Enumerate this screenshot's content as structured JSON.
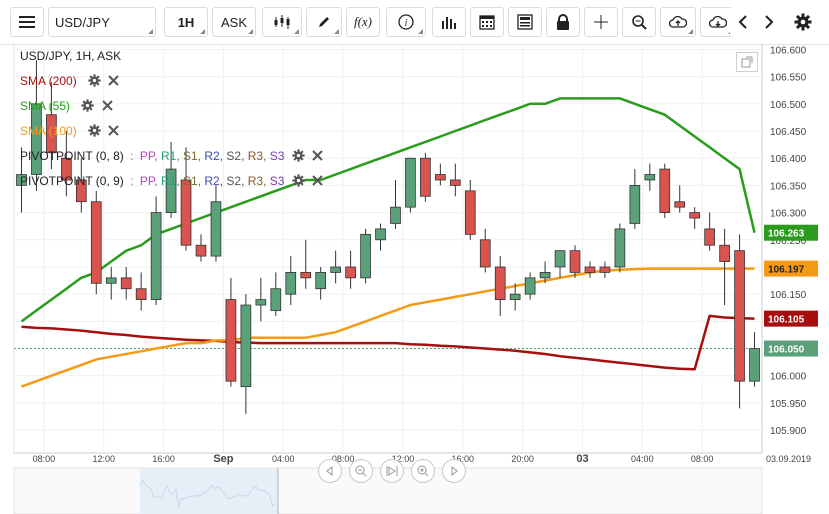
{
  "toolbar": {
    "symbol": "USD/JPY",
    "interval": "1H",
    "price_side": "ASK",
    "fx_label": "f(x)"
  },
  "legend": {
    "title": "USD/JPY, 1H, ASK",
    "sma200": "SMA (200)",
    "sma55": "SMA (55)",
    "sma100": "SMA (100)",
    "pivot1_name": "PIVOTPOINT (0, 8)",
    "pivot2_name": "PIVOTPOINT (0, 9)",
    "pivot_levels": [
      "PP,",
      "R1,",
      "S1,",
      "R2,",
      "S2,",
      "R3,",
      "S3"
    ],
    "pivot_sep": ":"
  },
  "colors": {
    "up": "#5aa17a",
    "down": "#d9534f",
    "sma200": "#a50f0f",
    "sma55": "#2a9b1c",
    "sma100": "#f59a16",
    "pp": "#c03fc0",
    "r1": "#1f9e77",
    "s1": "#7a6a30",
    "r2": "#3a4fb0",
    "s2": "#555555",
    "r3": "#8a5a2b",
    "s3": "#7b3bb0"
  },
  "axis": {
    "y_ticks": [
      "106.600",
      "106.550",
      "106.500",
      "106.450",
      "106.400",
      "106.350",
      "106.300",
      "106.250",
      "106.200",
      "106.150",
      "106.100",
      "106.050",
      "106.000",
      "105.950",
      "105.900"
    ],
    "x_ticks": [
      {
        "label": "08:00",
        "i": 1.5
      },
      {
        "label": "12:00",
        "i": 5.5
      },
      {
        "label": "16:00",
        "i": 9.5
      },
      {
        "label": "Sep",
        "i": 13.5
      },
      {
        "label": "04:00",
        "i": 17.5
      },
      {
        "label": "08:00",
        "i": 21.5
      },
      {
        "label": "12:00",
        "i": 25.5
      },
      {
        "label": "16:00",
        "i": 29.5
      },
      {
        "label": "20:00",
        "i": 33.5
      },
      {
        "label": "03",
        "i": 37.5
      },
      {
        "label": "04:00",
        "i": 41.5
      },
      {
        "label": "08:00",
        "i": 45.5
      }
    ],
    "date_label": "03.09.2019"
  },
  "price_tags": {
    "sma55": "106.263",
    "sma100": "106.197",
    "sma200": "106.105",
    "last": "106.050"
  },
  "chart_data": {
    "type": "candlestick",
    "symbol": "USD/JPY",
    "interval": "1H",
    "ylim": [
      105.88,
      106.61
    ],
    "candles": [
      {
        "o": 106.35,
        "h": 106.42,
        "l": 106.3,
        "c": 106.37
      },
      {
        "o": 106.37,
        "h": 106.58,
        "l": 106.34,
        "c": 106.5
      },
      {
        "o": 106.48,
        "h": 106.54,
        "l": 106.38,
        "c": 106.41
      },
      {
        "o": 106.4,
        "h": 106.45,
        "l": 106.33,
        "c": 106.36
      },
      {
        "o": 106.36,
        "h": 106.4,
        "l": 106.3,
        "c": 106.32
      },
      {
        "o": 106.32,
        "h": 106.34,
        "l": 106.15,
        "c": 106.17
      },
      {
        "o": 106.17,
        "h": 106.2,
        "l": 106.14,
        "c": 106.18
      },
      {
        "o": 106.18,
        "h": 106.2,
        "l": 106.14,
        "c": 106.16
      },
      {
        "o": 106.16,
        "h": 106.19,
        "l": 106.12,
        "c": 106.14
      },
      {
        "o": 106.14,
        "h": 106.33,
        "l": 106.13,
        "c": 106.3
      },
      {
        "o": 106.3,
        "h": 106.43,
        "l": 106.29,
        "c": 106.38
      },
      {
        "o": 106.36,
        "h": 106.42,
        "l": 106.23,
        "c": 106.24
      },
      {
        "o": 106.24,
        "h": 106.26,
        "l": 106.21,
        "c": 106.22
      },
      {
        "o": 106.22,
        "h": 106.35,
        "l": 106.21,
        "c": 106.32
      },
      {
        "o": 106.14,
        "h": 106.18,
        "l": 105.98,
        "c": 105.99
      },
      {
        "o": 105.98,
        "h": 106.15,
        "l": 105.93,
        "c": 106.13
      },
      {
        "o": 106.13,
        "h": 106.18,
        "l": 106.1,
        "c": 106.14
      },
      {
        "o": 106.12,
        "h": 106.19,
        "l": 106.11,
        "c": 106.16
      },
      {
        "o": 106.15,
        "h": 106.22,
        "l": 106.13,
        "c": 106.19
      },
      {
        "o": 106.19,
        "h": 106.25,
        "l": 106.16,
        "c": 106.18
      },
      {
        "o": 106.16,
        "h": 106.2,
        "l": 106.14,
        "c": 106.19
      },
      {
        "o": 106.19,
        "h": 106.23,
        "l": 106.17,
        "c": 106.2
      },
      {
        "o": 106.2,
        "h": 106.23,
        "l": 106.16,
        "c": 106.18
      },
      {
        "o": 106.18,
        "h": 106.27,
        "l": 106.17,
        "c": 106.26
      },
      {
        "o": 106.25,
        "h": 106.28,
        "l": 106.23,
        "c": 106.27
      },
      {
        "o": 106.28,
        "h": 106.36,
        "l": 106.27,
        "c": 106.31
      },
      {
        "o": 106.31,
        "h": 106.4,
        "l": 106.3,
        "c": 106.4
      },
      {
        "o": 106.4,
        "h": 106.41,
        "l": 106.32,
        "c": 106.33
      },
      {
        "o": 106.37,
        "h": 106.39,
        "l": 106.35,
        "c": 106.36
      },
      {
        "o": 106.36,
        "h": 106.39,
        "l": 106.33,
        "c": 106.35
      },
      {
        "o": 106.34,
        "h": 106.36,
        "l": 106.25,
        "c": 106.26
      },
      {
        "o": 106.25,
        "h": 106.27,
        "l": 106.19,
        "c": 106.2
      },
      {
        "o": 106.2,
        "h": 106.22,
        "l": 106.11,
        "c": 106.14
      },
      {
        "o": 106.14,
        "h": 106.17,
        "l": 106.12,
        "c": 106.15
      },
      {
        "o": 106.15,
        "h": 106.19,
        "l": 106.14,
        "c": 106.18
      },
      {
        "o": 106.18,
        "h": 106.21,
        "l": 106.17,
        "c": 106.19
      },
      {
        "o": 106.2,
        "h": 106.23,
        "l": 106.18,
        "c": 106.23
      },
      {
        "o": 106.23,
        "h": 106.24,
        "l": 106.18,
        "c": 106.19
      },
      {
        "o": 106.2,
        "h": 106.21,
        "l": 106.18,
        "c": 106.19
      },
      {
        "o": 106.2,
        "h": 106.21,
        "l": 106.18,
        "c": 106.19
      },
      {
        "o": 106.2,
        "h": 106.28,
        "l": 106.19,
        "c": 106.27
      },
      {
        "o": 106.28,
        "h": 106.38,
        "l": 106.27,
        "c": 106.35
      },
      {
        "o": 106.36,
        "h": 106.39,
        "l": 106.34,
        "c": 106.37
      },
      {
        "o": 106.38,
        "h": 106.39,
        "l": 106.29,
        "c": 106.3
      },
      {
        "o": 106.32,
        "h": 106.35,
        "l": 106.3,
        "c": 106.31
      },
      {
        "o": 106.3,
        "h": 106.31,
        "l": 106.27,
        "c": 106.29
      },
      {
        "o": 106.27,
        "h": 106.3,
        "l": 106.23,
        "c": 106.24
      },
      {
        "o": 106.24,
        "h": 106.27,
        "l": 106.13,
        "c": 106.21
      },
      {
        "o": 106.23,
        "h": 106.26,
        "l": 105.94,
        "c": 105.99
      },
      {
        "o": 105.99,
        "h": 106.08,
        "l": 105.98,
        "c": 106.05
      }
    ],
    "sma200": [
      106.09,
      106.088,
      106.087,
      106.085,
      106.083,
      106.08,
      106.077,
      106.075,
      106.072,
      106.07,
      106.068,
      106.066,
      106.065,
      106.064,
      106.062,
      106.061,
      106.06,
      106.06,
      106.06,
      106.06,
      106.06,
      106.06,
      106.06,
      106.06,
      106.06,
      106.06,
      106.058,
      106.057,
      106.055,
      106.054,
      106.052,
      106.05,
      106.048,
      106.046,
      106.043,
      106.04,
      106.036,
      106.033,
      106.03,
      106.027,
      106.024,
      106.021,
      106.018,
      106.015,
      106.013,
      106.012,
      106.11,
      106.107,
      106.106,
      106.105
    ],
    "sma_note": "moving average lines",
    "sma55": [
      106.1,
      106.12,
      106.14,
      106.16,
      106.18,
      106.19,
      106.21,
      106.23,
      106.24,
      106.26,
      106.27,
      106.28,
      106.29,
      106.3,
      106.31,
      106.32,
      106.33,
      106.34,
      106.35,
      106.36,
      106.36,
      106.37,
      106.38,
      106.39,
      106.4,
      106.41,
      106.42,
      106.43,
      106.44,
      106.45,
      106.46,
      106.47,
      106.48,
      106.49,
      106.5,
      106.5,
      106.51,
      106.51,
      106.51,
      106.51,
      106.51,
      106.5,
      106.49,
      106.48,
      106.46,
      106.44,
      106.42,
      106.4,
      106.38,
      106.263
    ],
    "sma100": [
      105.98,
      105.99,
      106.0,
      106.01,
      106.02,
      106.03,
      106.035,
      106.04,
      106.045,
      106.05,
      106.055,
      106.06,
      106.06,
      106.065,
      106.065,
      106.07,
      106.07,
      106.07,
      106.07,
      106.07,
      106.075,
      106.08,
      106.09,
      106.1,
      106.11,
      106.12,
      106.13,
      106.135,
      106.14,
      106.145,
      106.15,
      106.155,
      106.16,
      106.165,
      106.17,
      106.175,
      106.18,
      106.185,
      106.19,
      106.193,
      106.195,
      106.196,
      106.197,
      106.197,
      106.197,
      106.197,
      106.197,
      106.197,
      106.197,
      106.197
    ],
    "last_price": 106.05
  }
}
